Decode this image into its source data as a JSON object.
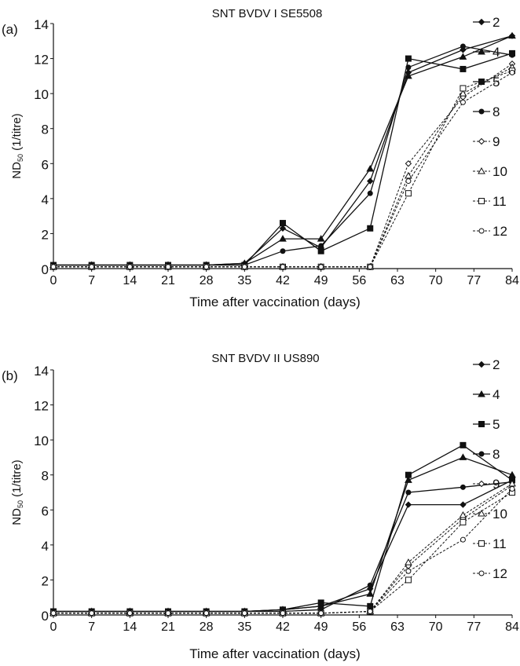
{
  "chart_data": [
    {
      "type": "line",
      "panel_label": "(a)",
      "title": "SNT BVDV I SE5508",
      "xlabel": "Time after vaccination (days)",
      "ylabel_main": "ND",
      "ylabel_sub": "50",
      "ylabel_unit": "(1/titre)",
      "x_ticks": [
        "0",
        "7",
        "14",
        "21",
        "28",
        "35",
        "42",
        "49",
        "56",
        "63",
        "70",
        "77",
        "84"
      ],
      "y_ticks": [
        "0",
        "2",
        "4",
        "6",
        "8",
        "10",
        "12",
        "14"
      ],
      "xlim": [
        0,
        84
      ],
      "ylim": [
        0,
        14
      ],
      "legend_position": "right",
      "series": [
        {
          "name": "2",
          "dash": false,
          "marker": "diamond-filled",
          "x": [
            0,
            7,
            14,
            21,
            28,
            35,
            42,
            49,
            58,
            65,
            75,
            84
          ],
          "y": [
            0.2,
            0.2,
            0.2,
            0.2,
            0.2,
            0.3,
            2.3,
            1.2,
            5.0,
            11.2,
            12.5,
            13.3
          ]
        },
        {
          "name": "4",
          "dash": false,
          "marker": "triangle-filled",
          "x": [
            0,
            7,
            14,
            21,
            28,
            35,
            42,
            49,
            58,
            65,
            75,
            84
          ],
          "y": [
            0.2,
            0.2,
            0.2,
            0.2,
            0.2,
            0.3,
            1.7,
            1.7,
            5.7,
            11.0,
            12.1,
            13.3
          ]
        },
        {
          "name": "5",
          "dash": false,
          "marker": "square-filled",
          "x": [
            0,
            7,
            14,
            21,
            28,
            35,
            42,
            49,
            58,
            65,
            75,
            84
          ],
          "y": [
            0.2,
            0.2,
            0.2,
            0.2,
            0.2,
            0.2,
            2.6,
            1.0,
            2.3,
            12.0,
            11.4,
            12.3
          ]
        },
        {
          "name": "8",
          "dash": false,
          "marker": "circle-filled",
          "x": [
            0,
            7,
            14,
            21,
            28,
            35,
            42,
            49,
            58,
            65,
            75,
            84
          ],
          "y": [
            0.2,
            0.2,
            0.2,
            0.2,
            0.2,
            0.2,
            1.0,
            1.3,
            4.3,
            11.5,
            12.7,
            12.2
          ]
        },
        {
          "name": "9",
          "dash": true,
          "marker": "diamond-open",
          "x": [
            0,
            7,
            14,
            21,
            28,
            35,
            42,
            49,
            58,
            65,
            75,
            84
          ],
          "y": [
            0.1,
            0.1,
            0.1,
            0.1,
            0.1,
            0.1,
            0.1,
            0.1,
            0.1,
            6.0,
            9.8,
            11.7
          ]
        },
        {
          "name": "10",
          "dash": true,
          "marker": "triangle-open",
          "x": [
            0,
            7,
            14,
            21,
            28,
            35,
            42,
            49,
            58,
            65,
            75,
            84
          ],
          "y": [
            0.1,
            0.1,
            0.1,
            0.1,
            0.1,
            0.1,
            0.1,
            0.1,
            0.1,
            5.3,
            10.0,
            11.5
          ]
        },
        {
          "name": "11",
          "dash": true,
          "marker": "square-open",
          "x": [
            0,
            7,
            14,
            21,
            28,
            35,
            42,
            49,
            58,
            65,
            75,
            84
          ],
          "y": [
            0.1,
            0.1,
            0.1,
            0.1,
            0.1,
            0.1,
            0.1,
            0.1,
            0.1,
            4.3,
            10.3,
            11.3
          ]
        },
        {
          "name": "12",
          "dash": true,
          "marker": "circle-open",
          "x": [
            0,
            7,
            14,
            21,
            28,
            35,
            42,
            49,
            58,
            65,
            75,
            84
          ],
          "y": [
            0.1,
            0.1,
            0.1,
            0.1,
            0.1,
            0.1,
            0.1,
            0.1,
            0.1,
            5.0,
            9.5,
            11.2
          ]
        }
      ]
    },
    {
      "type": "line",
      "panel_label": "(b)",
      "title": "SNT BVDV II US890",
      "xlabel": "Time after vaccination (days)",
      "ylabel_main": "ND",
      "ylabel_sub": "50",
      "ylabel_unit": "(1/titre)",
      "x_ticks": [
        "0",
        "7",
        "14",
        "21",
        "28",
        "35",
        "42",
        "49",
        "56",
        "63",
        "70",
        "77",
        "84"
      ],
      "y_ticks": [
        "0",
        "2",
        "4",
        "6",
        "8",
        "10",
        "12",
        "14"
      ],
      "xlim": [
        0,
        84
      ],
      "ylim": [
        0,
        14
      ],
      "legend_position": "right",
      "series": [
        {
          "name": "2",
          "dash": false,
          "marker": "diamond-filled",
          "x": [
            0,
            7,
            14,
            21,
            28,
            35,
            42,
            49,
            58,
            65,
            75,
            84
          ],
          "y": [
            0.2,
            0.2,
            0.2,
            0.2,
            0.2,
            0.2,
            0.3,
            0.5,
            1.5,
            6.3,
            6.3,
            7.7
          ]
        },
        {
          "name": "4",
          "dash": false,
          "marker": "triangle-filled",
          "x": [
            0,
            7,
            14,
            21,
            28,
            35,
            42,
            49,
            58,
            65,
            75,
            84
          ],
          "y": [
            0.2,
            0.2,
            0.2,
            0.2,
            0.2,
            0.2,
            0.3,
            0.5,
            1.2,
            7.7,
            9.0,
            8.0
          ]
        },
        {
          "name": "5",
          "dash": false,
          "marker": "square-filled",
          "x": [
            0,
            7,
            14,
            21,
            28,
            35,
            42,
            49,
            58,
            65,
            75,
            84
          ],
          "y": [
            0.2,
            0.2,
            0.2,
            0.2,
            0.2,
            0.2,
            0.3,
            0.7,
            0.5,
            8.0,
            9.7,
            7.7
          ]
        },
        {
          "name": "8",
          "dash": false,
          "marker": "circle-filled",
          "x": [
            0,
            7,
            14,
            21,
            28,
            35,
            42,
            49,
            58,
            65,
            75,
            84
          ],
          "y": [
            0.2,
            0.2,
            0.2,
            0.2,
            0.2,
            0.2,
            0.2,
            0.3,
            1.7,
            7.0,
            7.3,
            7.6
          ]
        },
        {
          "name": "9",
          "dash": true,
          "marker": "diamond-open",
          "x": [
            0,
            7,
            14,
            21,
            28,
            35,
            42,
            49,
            58,
            65,
            75,
            84
          ],
          "y": [
            0.1,
            0.1,
            0.1,
            0.1,
            0.1,
            0.1,
            0.1,
            0.1,
            0.2,
            2.8,
            5.5,
            7.4
          ]
        },
        {
          "name": "10",
          "dash": true,
          "marker": "triangle-open",
          "x": [
            0,
            7,
            14,
            21,
            28,
            35,
            42,
            49,
            58,
            65,
            75,
            84
          ],
          "y": [
            0.1,
            0.1,
            0.1,
            0.1,
            0.1,
            0.1,
            0.1,
            0.1,
            0.2,
            3.0,
            5.7,
            7.5
          ]
        },
        {
          "name": "11",
          "dash": true,
          "marker": "square-open",
          "x": [
            0,
            7,
            14,
            21,
            28,
            35,
            42,
            49,
            58,
            65,
            75,
            84
          ],
          "y": [
            0.1,
            0.1,
            0.1,
            0.1,
            0.1,
            0.1,
            0.1,
            0.1,
            0.2,
            2.0,
            5.3,
            7.0
          ]
        },
        {
          "name": "12",
          "dash": true,
          "marker": "circle-open",
          "x": [
            0,
            7,
            14,
            21,
            28,
            35,
            42,
            49,
            58,
            65,
            75,
            84
          ],
          "y": [
            0.1,
            0.1,
            0.1,
            0.1,
            0.1,
            0.1,
            0.1,
            0.1,
            0.2,
            2.5,
            4.3,
            7.2
          ]
        }
      ]
    }
  ]
}
